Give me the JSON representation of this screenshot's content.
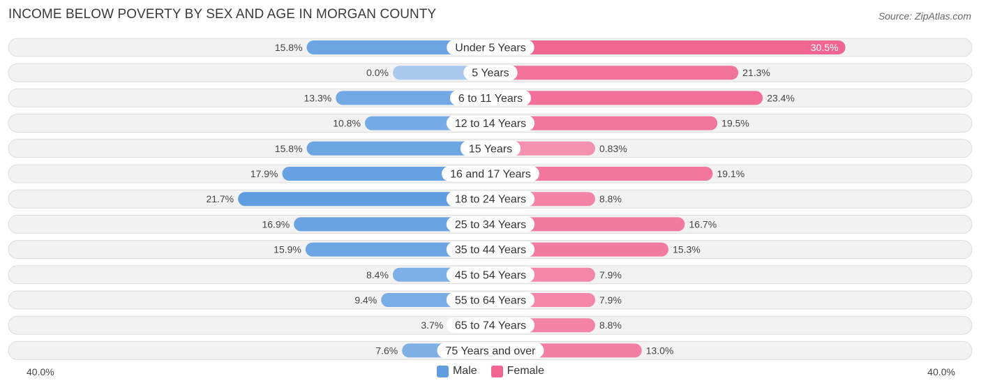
{
  "header": {
    "title": "INCOME BELOW POVERTY BY SEX AND AGE IN MORGAN COUNTY",
    "source": "Source: ZipAtlas.com"
  },
  "colors": {
    "male_dark": "#5f9de0",
    "male_light": "#a9c9ee",
    "female_dark": "#f06592",
    "female_light": "#f7a9c1",
    "row_bg": "#f2f2f2",
    "row_border": "#dcdcdc"
  },
  "axis": {
    "left_label": "40.0%",
    "right_label": "40.0%"
  },
  "legend": {
    "male_label": "Male",
    "female_label": "Female"
  },
  "chart_data": {
    "type": "bar",
    "orientation": "horizontal-diverging",
    "title": "INCOME BELOW POVERTY BY SEX AND AGE IN MORGAN COUNTY",
    "xlim": [
      -40,
      40
    ],
    "categories": [
      "Under 5 Years",
      "5 Years",
      "6 to 11 Years",
      "12 to 14 Years",
      "15 Years",
      "16 and 17 Years",
      "18 to 24 Years",
      "25 to 34 Years",
      "35 to 44 Years",
      "45 to 54 Years",
      "55 to 64 Years",
      "65 to 74 Years",
      "75 Years and over"
    ],
    "series": [
      {
        "name": "Male",
        "values": [
          15.8,
          0.0,
          13.3,
          10.8,
          15.8,
          17.9,
          21.7,
          16.9,
          15.9,
          8.4,
          9.4,
          3.7,
          7.6
        ],
        "labels": [
          "15.8%",
          "0.0%",
          "13.3%",
          "10.8%",
          "15.8%",
          "17.9%",
          "21.7%",
          "16.9%",
          "15.9%",
          "8.4%",
          "9.4%",
          "3.7%",
          "7.6%"
        ]
      },
      {
        "name": "Female",
        "values": [
          30.5,
          21.3,
          23.4,
          19.5,
          0.83,
          19.1,
          8.8,
          16.7,
          15.3,
          7.9,
          7.9,
          8.8,
          13.0
        ],
        "labels": [
          "30.5%",
          "21.3%",
          "23.4%",
          "19.5%",
          "0.83%",
          "19.1%",
          "8.8%",
          "16.7%",
          "15.3%",
          "7.9%",
          "7.9%",
          "8.8%",
          "13.0%"
        ]
      }
    ]
  }
}
